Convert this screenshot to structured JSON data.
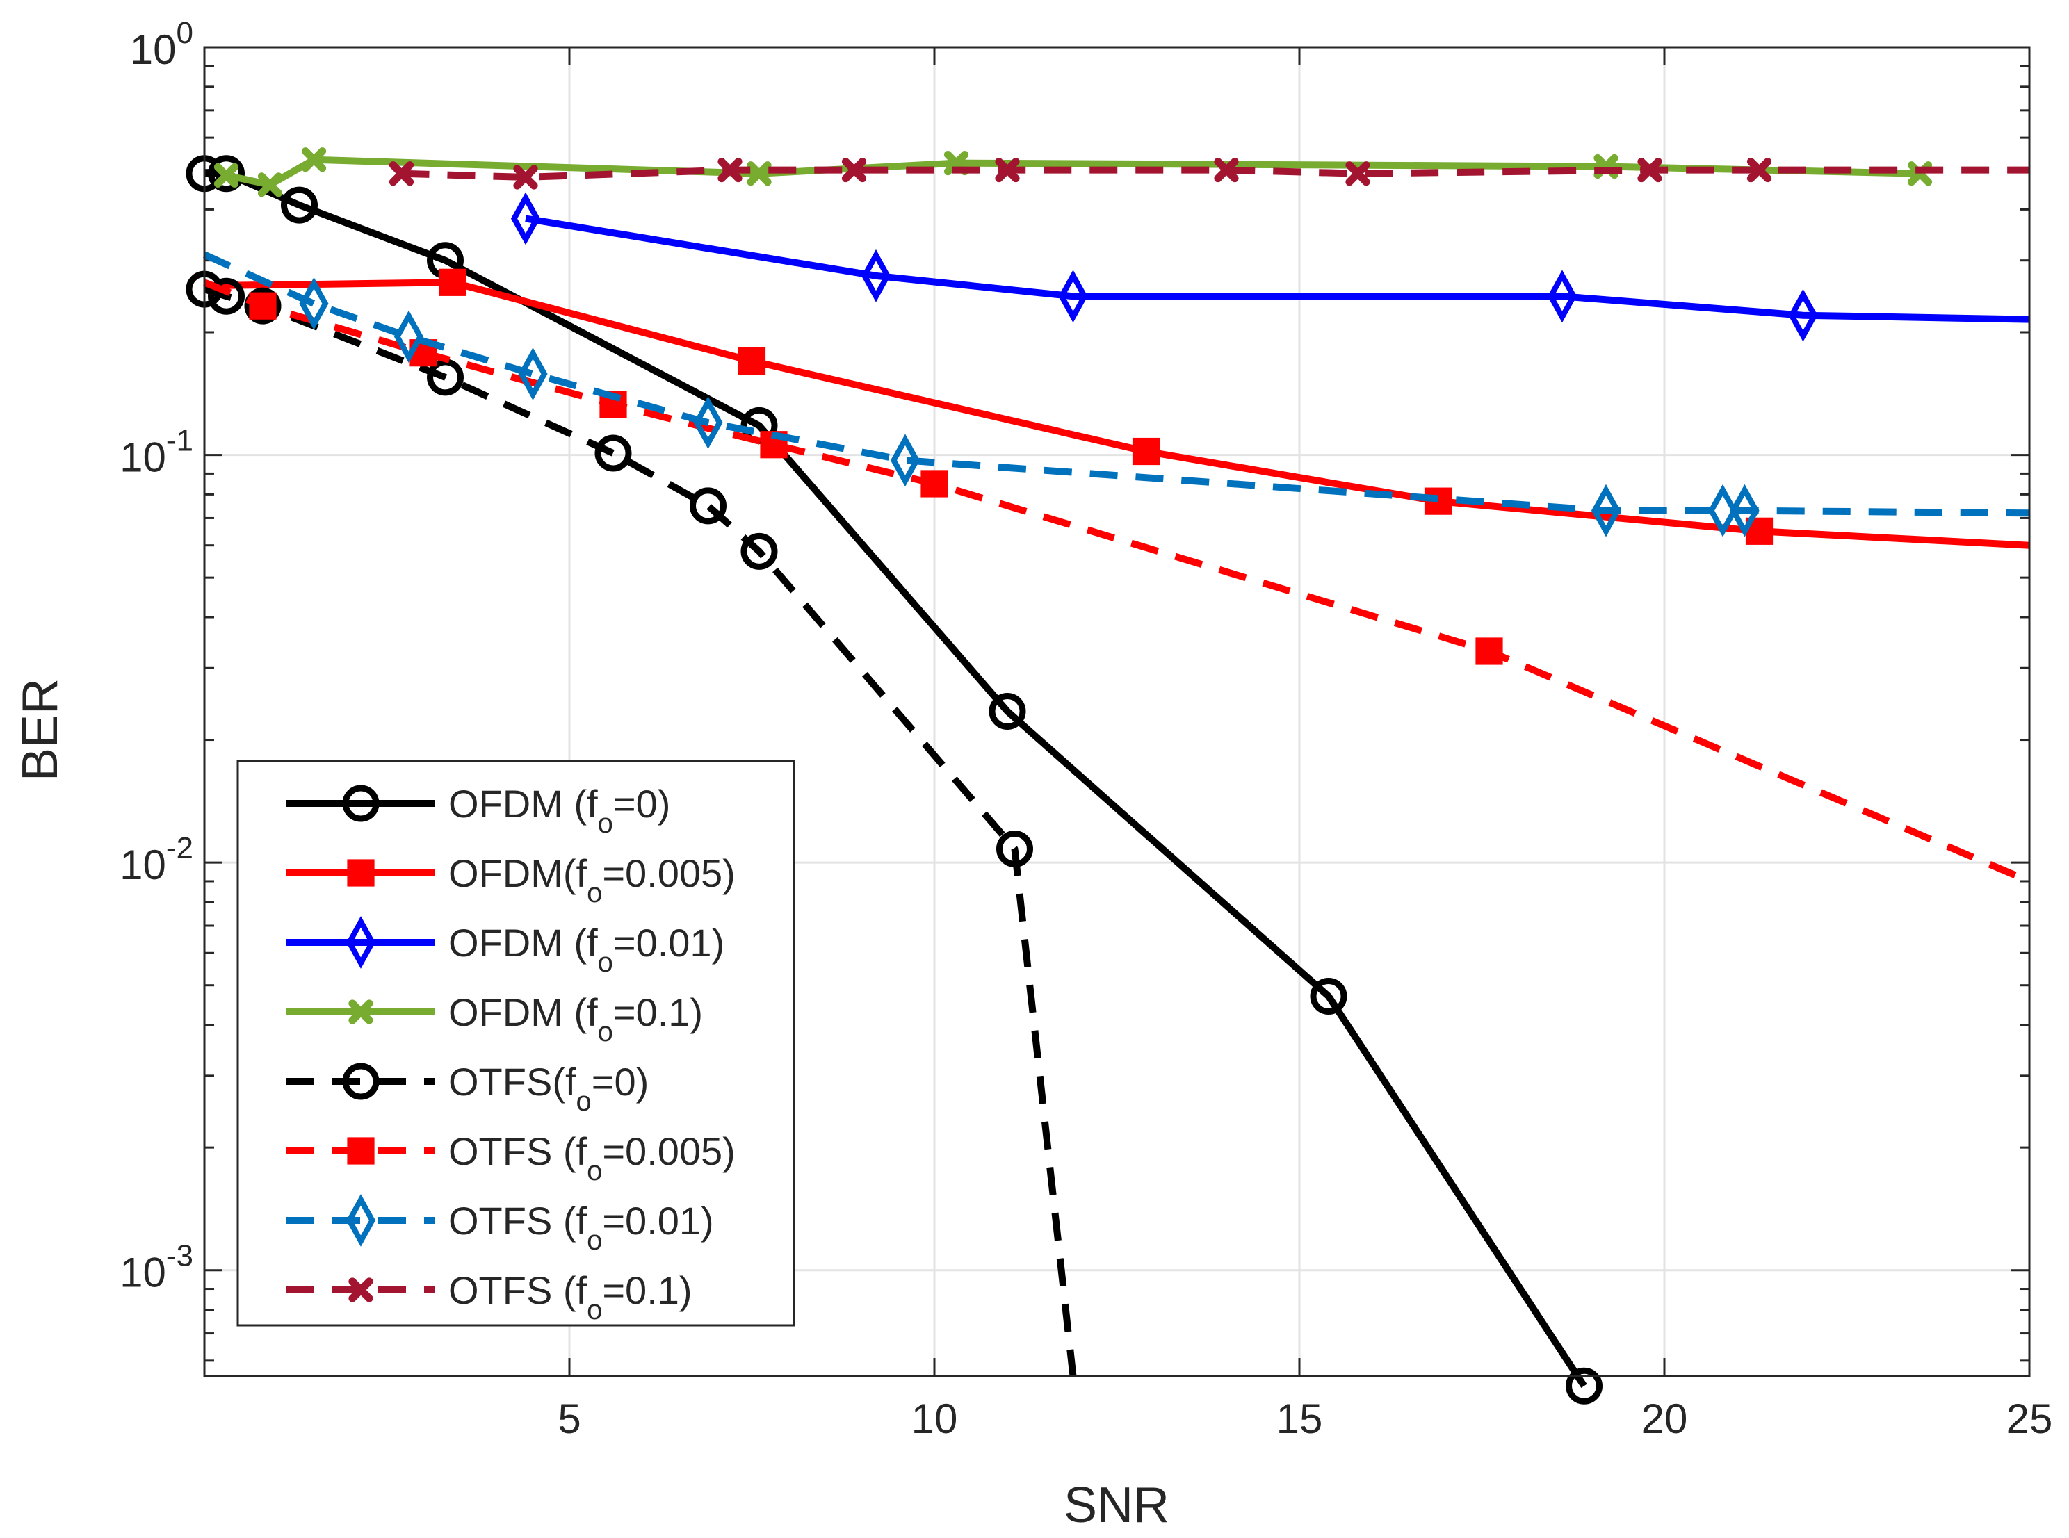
{
  "chart_data": {
    "type": "line",
    "title": "",
    "xlabel": "SNR",
    "ylabel": "BER",
    "xlim": [
      0,
      25
    ],
    "ylim": [
      0.00055,
      1
    ],
    "yscale": "log",
    "grid": true,
    "legend_position": "bottom-left",
    "x_ticks": [
      {
        "value": 5,
        "label": "5"
      },
      {
        "value": 10,
        "label": "10"
      },
      {
        "value": 15,
        "label": "15"
      },
      {
        "value": 20,
        "label": "20"
      },
      {
        "value": 25,
        "label": "25"
      }
    ],
    "y_ticks": [
      {
        "value": 1,
        "base": "10",
        "exp": "0"
      },
      {
        "value": 0.1,
        "base": "10",
        "exp": "-1"
      },
      {
        "value": 0.01,
        "base": "10",
        "exp": "-2"
      },
      {
        "value": 0.001,
        "base": "10",
        "exp": "-3"
      }
    ],
    "series": [
      {
        "label": {
          "main": "OFDM (f",
          "sub": "o",
          "rest": "=0)"
        },
        "color": "#000000",
        "dashed": false,
        "marker": "circle",
        "x": [
          0,
          0.3,
          1.3,
          3.3,
          7.6,
          11.0,
          15.4,
          18.9
        ],
        "y": [
          0.49,
          0.49,
          0.41,
          0.3,
          0.118,
          0.0235,
          0.0047,
          0.00052
        ]
      },
      {
        "label": {
          "main": "OFDM(f",
          "sub": "o",
          "rest": "=0.005)"
        },
        "color": "#ff0000",
        "dashed": false,
        "marker": "square",
        "x": [
          0,
          3.4,
          7.5,
          12.9,
          16.9,
          21.3,
          25
        ],
        "y": [
          0.26,
          0.265,
          0.17,
          0.102,
          0.077,
          0.065,
          0.06
        ]
      },
      {
        "label": {
          "main": "OFDM (f",
          "sub": "o",
          "rest": "=0.01)"
        },
        "color": "#0000ff",
        "dashed": false,
        "marker": "diamond",
        "x": [
          4.4,
          9.2,
          11.9,
          18.6,
          21.9,
          25
        ],
        "y": [
          0.38,
          0.275,
          0.245,
          0.245,
          0.22,
          0.215
        ]
      },
      {
        "label": {
          "main": "OFDM (f",
          "sub": "o",
          "rest": "=0.1)"
        },
        "color": "#77ac30",
        "dashed": false,
        "marker": "x",
        "x": [
          0.3,
          0.9,
          1.5,
          7.6,
          10.3,
          19.2,
          23.5
        ],
        "y": [
          0.485,
          0.46,
          0.53,
          0.49,
          0.52,
          0.51,
          0.49
        ]
      },
      {
        "label": {
          "main": "OTFS(f",
          "sub": "o",
          "rest": "=0)"
        },
        "color": "#000000",
        "dashed": true,
        "marker": "circle",
        "x": [
          0,
          0.3,
          0.8,
          3.3,
          5.6,
          6.9,
          7.6,
          11.1,
          11.9
        ],
        "y": [
          0.255,
          0.245,
          0.232,
          0.155,
          0.101,
          0.075,
          0.058,
          0.0108,
          0.00055
        ]
      },
      {
        "label": {
          "main": "OTFS (f",
          "sub": "o",
          "rest": "=0.005)"
        },
        "color": "#ff0000",
        "dashed": true,
        "marker": "square",
        "x": [
          0,
          0.8,
          3.0,
          5.6,
          7.8,
          10.0,
          17.6,
          25
        ],
        "y": [
          0.265,
          0.232,
          0.178,
          0.133,
          0.106,
          0.085,
          0.033,
          0.009
        ]
      },
      {
        "label": {
          "main": "OTFS (f",
          "sub": "o",
          "rest": "=0.01)"
        },
        "color": "#0072bd",
        "dashed": true,
        "marker": "diamond",
        "x": [
          0,
          1.5,
          2.8,
          4.5,
          6.9,
          9.6,
          19.2,
          20.8,
          21.1,
          25
        ],
        "y": [
          0.31,
          0.235,
          0.195,
          0.158,
          0.12,
          0.097,
          0.073,
          0.073,
          0.073,
          0.072
        ]
      },
      {
        "label": {
          "main": "OTFS (f",
          "sub": "o",
          "rest": "=0.1)"
        },
        "color": "#a2142f",
        "dashed": true,
        "marker": "x",
        "x": [
          2.7,
          4.4,
          7.2,
          8.9,
          11.0,
          14.0,
          15.8,
          19.8,
          21.3,
          25
        ],
        "y": [
          0.49,
          0.48,
          0.5,
          0.5,
          0.5,
          0.5,
          0.49,
          0.5,
          0.5,
          0.5
        ]
      }
    ]
  }
}
